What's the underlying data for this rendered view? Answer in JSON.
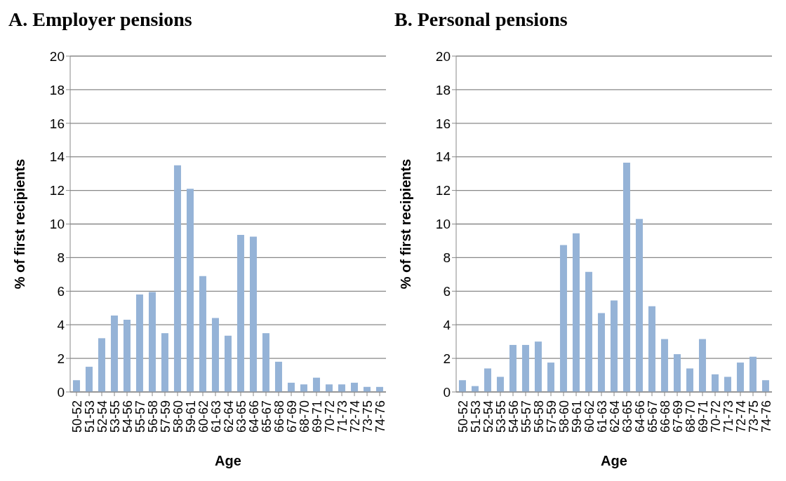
{
  "chart_data": [
    {
      "type": "bar",
      "title": "A. Employer pensions",
      "xlabel": "Age",
      "ylabel": "% of first recipients",
      "categories": [
        "50-52",
        "51-53",
        "52-54",
        "53-55",
        "54-56",
        "55-57",
        "56-58",
        "57-59",
        "58-60",
        "59-61",
        "60-62",
        "61-63",
        "62-64",
        "63-65",
        "64-66",
        "65-67",
        "66-68",
        "67-69",
        "68-70",
        "69-71",
        "70-72",
        "71-73",
        "72-74",
        "73-75",
        "74-76"
      ],
      "values": [
        0.7,
        1.5,
        3.2,
        4.55,
        4.3,
        5.8,
        5.95,
        3.5,
        13.5,
        12.1,
        6.9,
        4.4,
        3.35,
        9.35,
        9.25,
        3.5,
        1.8,
        0.55,
        0.45,
        0.85,
        0.45,
        0.45,
        0.55,
        0.3,
        0.3
      ],
      "color": "#95b3d7",
      "ylim": [
        0,
        20
      ],
      "yticks": [
        0,
        2,
        4,
        6,
        8,
        10,
        12,
        14,
        16,
        18,
        20
      ],
      "grid": "y"
    },
    {
      "type": "bar",
      "title": "B. Personal pensions",
      "xlabel": "Age",
      "ylabel": "% of first recipients",
      "categories": [
        "50-52",
        "51-53",
        "52-54",
        "53-55",
        "54-56",
        "55-57",
        "56-58",
        "57-59",
        "58-60",
        "59-61",
        "60-62",
        "61-63",
        "62-64",
        "63-65",
        "64-66",
        "65-67",
        "66-68",
        "67-69",
        "68-70",
        "69-71",
        "70-72",
        "71-73",
        "72-74",
        "73-75",
        "74-76"
      ],
      "values": [
        0.7,
        0.35,
        1.4,
        0.9,
        2.8,
        2.8,
        3.0,
        1.75,
        8.75,
        9.45,
        7.15,
        4.7,
        5.45,
        13.65,
        10.3,
        5.1,
        3.15,
        2.25,
        1.4,
        3.15,
        1.05,
        0.9,
        1.75,
        2.1,
        0.7
      ],
      "color": "#95b3d7",
      "ylim": [
        0,
        20
      ],
      "yticks": [
        0,
        2,
        4,
        6,
        8,
        10,
        12,
        14,
        16,
        18,
        20
      ],
      "grid": "y"
    }
  ]
}
